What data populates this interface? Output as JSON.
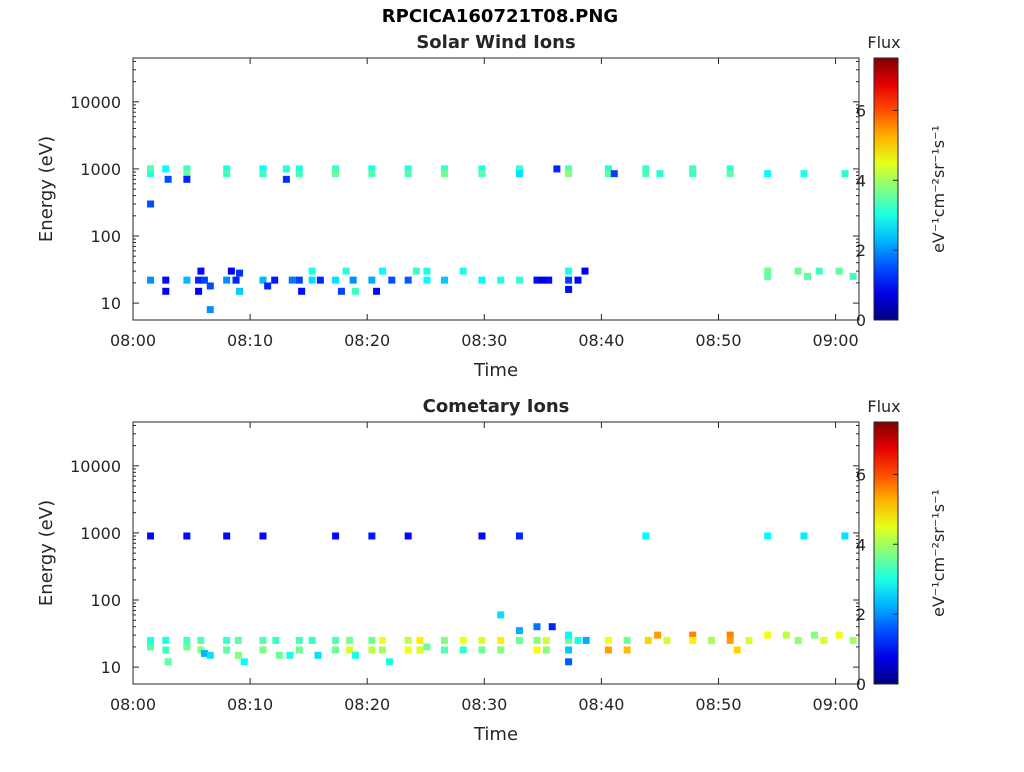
{
  "figure": {
    "title": "RPCICA160721T08.PNG"
  },
  "colorbar": {
    "label": "Flux",
    "unit_html": "eV⁻¹cm⁻²sr⁻¹s⁻¹",
    "min": 0,
    "max": 7.5,
    "ticks": [
      "0",
      "2",
      "4",
      "6"
    ],
    "colormap": "jet"
  },
  "axes_common": {
    "xlabel": "Time",
    "ylabel": "Energy (eV)",
    "x_ticks": [
      "08:00",
      "08:10",
      "08:20",
      "08:30",
      "08:40",
      "08:50",
      "09:00"
    ],
    "y_ticks": [
      "10",
      "100",
      "1000",
      "10000"
    ],
    "y_scale": "log",
    "x_range_minutes": [
      0,
      62
    ],
    "y_range": [
      5.6,
      45000
    ]
  },
  "chart_data": [
    {
      "type": "heatmap",
      "title": "Solar Wind Ions",
      "xlabel": "Time",
      "ylabel": "Energy (eV)",
      "cells": [
        [
          1.5,
          850,
          3.0
        ],
        [
          1.5,
          1000,
          3.4
        ],
        [
          1.5,
          22,
          2.0
        ],
        [
          1.5,
          300,
          1.5
        ],
        [
          2.8,
          22,
          1.0
        ],
        [
          2.8,
          15,
          0.9
        ],
        [
          2.8,
          1000,
          2.8
        ],
        [
          3.0,
          700,
          1.5
        ],
        [
          4.6,
          1000,
          3.2
        ],
        [
          4.6,
          850,
          3.6
        ],
        [
          4.6,
          22,
          2.3
        ],
        [
          4.6,
          700,
          1.2
        ],
        [
          5.6,
          22,
          1.2
        ],
        [
          5.6,
          15,
          0.9
        ],
        [
          5.8,
          30,
          1.0
        ],
        [
          6.1,
          22,
          1.4
        ],
        [
          6.6,
          18,
          1.5
        ],
        [
          6.6,
          8,
          2.0
        ],
        [
          8.0,
          1000,
          3.0
        ],
        [
          8.0,
          850,
          3.3
        ],
        [
          8.0,
          22,
          2.0
        ],
        [
          8.4,
          30,
          0.9
        ],
        [
          8.8,
          22,
          1.2
        ],
        [
          9.1,
          28,
          1.3
        ],
        [
          9.1,
          15,
          2.4
        ],
        [
          11.1,
          1000,
          2.8
        ],
        [
          11.1,
          850,
          3.2
        ],
        [
          11.1,
          22,
          2.3
        ],
        [
          11.5,
          18,
          1.2
        ],
        [
          12.1,
          22,
          1.1
        ],
        [
          13.1,
          1000,
          3.1
        ],
        [
          13.1,
          700,
          1.3
        ],
        [
          13.6,
          22,
          1.8
        ],
        [
          14.2,
          1000,
          3.0
        ],
        [
          14.2,
          850,
          3.3
        ],
        [
          14.2,
          22,
          1.4
        ],
        [
          14.4,
          15,
          1.0
        ],
        [
          15.3,
          22,
          2.6
        ],
        [
          15.3,
          30,
          3.0
        ],
        [
          16.0,
          22,
          1.2
        ],
        [
          17.3,
          1000,
          3.2
        ],
        [
          17.3,
          850,
          3.5
        ],
        [
          17.3,
          22,
          2.6
        ],
        [
          17.8,
          15,
          1.4
        ],
        [
          18.2,
          30,
          3.1
        ],
        [
          18.8,
          22,
          2.0
        ],
        [
          19.0,
          15,
          3.3
        ],
        [
          20.4,
          1000,
          3.0
        ],
        [
          20.4,
          850,
          3.4
        ],
        [
          20.4,
          22,
          2.2
        ],
        [
          20.8,
          15,
          1.0
        ],
        [
          21.3,
          30,
          2.8
        ],
        [
          22.1,
          22,
          1.5
        ],
        [
          23.5,
          1000,
          3.0
        ],
        [
          23.5,
          850,
          3.4
        ],
        [
          23.5,
          22,
          1.6
        ],
        [
          24.2,
          30,
          3.2
        ],
        [
          25.1,
          22,
          2.8
        ],
        [
          25.1,
          30,
          3.0
        ],
        [
          26.6,
          1000,
          3.2
        ],
        [
          26.6,
          850,
          3.6
        ],
        [
          26.6,
          22,
          2.4
        ],
        [
          28.2,
          30,
          3.0
        ],
        [
          29.8,
          1000,
          3.0
        ],
        [
          29.8,
          850,
          3.4
        ],
        [
          29.8,
          22,
          2.8
        ],
        [
          31.4,
          22,
          3.0
        ],
        [
          33.0,
          1000,
          3.2
        ],
        [
          33.0,
          850,
          2.6
        ],
        [
          33.0,
          22,
          3.2
        ],
        [
          34.5,
          22,
          1.0
        ],
        [
          35.0,
          22,
          0.7
        ],
        [
          35.5,
          22,
          1.0
        ],
        [
          36.2,
          1000,
          1.2
        ],
        [
          37.2,
          1000,
          3.4
        ],
        [
          37.2,
          850,
          3.8
        ],
        [
          37.2,
          30,
          3.0
        ],
        [
          37.2,
          22,
          1.4
        ],
        [
          37.2,
          16,
          1.0
        ],
        [
          38.0,
          22,
          1.0
        ],
        [
          38.6,
          30,
          0.9
        ],
        [
          40.6,
          1000,
          3.0
        ],
        [
          40.6,
          850,
          3.5
        ],
        [
          41.1,
          850,
          1.4
        ],
        [
          43.8,
          1000,
          3.2
        ],
        [
          43.8,
          850,
          3.4
        ],
        [
          45.0,
          850,
          3.1
        ],
        [
          47.8,
          1000,
          3.2
        ],
        [
          47.8,
          850,
          3.3
        ],
        [
          51.0,
          1000,
          3.1
        ],
        [
          51.0,
          850,
          3.5
        ],
        [
          54.2,
          850,
          2.8
        ],
        [
          54.2,
          30,
          3.6
        ],
        [
          54.2,
          25,
          3.5
        ],
        [
          57.3,
          850,
          3.0
        ],
        [
          56.8,
          30,
          3.6
        ],
        [
          57.6,
          25,
          3.5
        ],
        [
          58.6,
          30,
          3.3
        ],
        [
          60.8,
          850,
          3.1
        ],
        [
          60.3,
          30,
          3.5
        ],
        [
          61.5,
          25,
          3.3
        ]
      ]
    },
    {
      "type": "heatmap",
      "title": "Cometary Ions",
      "xlabel": "Time",
      "ylabel": "Energy (eV)",
      "cells": [
        [
          1.5,
          25,
          3.0
        ],
        [
          1.5,
          20,
          3.4
        ],
        [
          1.5,
          900,
          1.0
        ],
        [
          2.8,
          25,
          3.0
        ],
        [
          2.8,
          18,
          3.3
        ],
        [
          3.0,
          12,
          3.5
        ],
        [
          4.6,
          25,
          3.3
        ],
        [
          4.6,
          20,
          3.6
        ],
        [
          4.6,
          900,
          1.0
        ],
        [
          5.8,
          25,
          3.4
        ],
        [
          5.8,
          18,
          3.8
        ],
        [
          6.1,
          16,
          2.3
        ],
        [
          6.6,
          15,
          2.6
        ],
        [
          8.0,
          25,
          3.2
        ],
        [
          8.0,
          18,
          3.5
        ],
        [
          8.0,
          900,
          1.0
        ],
        [
          9.0,
          25,
          3.5
        ],
        [
          9.0,
          15,
          3.8
        ],
        [
          9.5,
          12,
          2.8
        ],
        [
          11.1,
          25,
          3.4
        ],
        [
          11.1,
          18,
          3.7
        ],
        [
          11.1,
          900,
          1.0
        ],
        [
          12.2,
          25,
          3.2
        ],
        [
          12.5,
          15,
          3.6
        ],
        [
          13.4,
          15,
          3.0
        ],
        [
          14.2,
          25,
          3.3
        ],
        [
          14.2,
          18,
          3.6
        ],
        [
          15.3,
          25,
          3.2
        ],
        [
          15.8,
          15,
          2.6
        ],
        [
          17.3,
          25,
          3.4
        ],
        [
          17.3,
          18,
          3.6
        ],
        [
          17.3,
          900,
          1.0
        ],
        [
          18.5,
          25,
          3.7
        ],
        [
          18.5,
          18,
          4.4
        ],
        [
          19.0,
          15,
          3.0
        ],
        [
          20.4,
          25,
          3.6
        ],
        [
          20.4,
          18,
          4.2
        ],
        [
          20.4,
          900,
          1.1
        ],
        [
          21.3,
          25,
          4.6
        ],
        [
          21.3,
          18,
          4.0
        ],
        [
          21.9,
          12,
          3.0
        ],
        [
          23.5,
          25,
          4.2
        ],
        [
          23.5,
          18,
          4.6
        ],
        [
          23.5,
          900,
          1.0
        ],
        [
          24.5,
          25,
          4.8
        ],
        [
          24.5,
          18,
          4.4
        ],
        [
          25.1,
          20,
          3.6
        ],
        [
          26.6,
          25,
          3.8
        ],
        [
          26.6,
          18,
          3.4
        ],
        [
          28.2,
          25,
          4.6
        ],
        [
          28.2,
          18,
          3.2
        ],
        [
          29.8,
          25,
          4.4
        ],
        [
          29.8,
          18,
          3.6
        ],
        [
          29.8,
          900,
          1.0
        ],
        [
          31.4,
          25,
          4.8
        ],
        [
          31.4,
          18,
          3.8
        ],
        [
          31.4,
          60,
          2.6
        ],
        [
          33.0,
          25,
          3.6
        ],
        [
          33.0,
          35,
          2.2
        ],
        [
          33.0,
          900,
          1.2
        ],
        [
          34.5,
          25,
          3.8
        ],
        [
          34.5,
          18,
          4.6
        ],
        [
          34.5,
          40,
          1.8
        ],
        [
          35.3,
          25,
          4.4
        ],
        [
          35.3,
          18,
          3.8
        ],
        [
          35.8,
          40,
          1.2
        ],
        [
          37.2,
          25,
          3.6
        ],
        [
          37.2,
          30,
          2.8
        ],
        [
          37.2,
          18,
          2.4
        ],
        [
          37.2,
          12,
          1.6
        ],
        [
          38.0,
          25,
          3.0
        ],
        [
          38.7,
          25,
          2.2
        ],
        [
          40.6,
          25,
          4.6
        ],
        [
          40.6,
          18,
          5.4
        ],
        [
          42.2,
          25,
          3.6
        ],
        [
          42.2,
          18,
          5.2
        ],
        [
          43.8,
          900,
          2.8
        ],
        [
          44.0,
          25,
          5.0
        ],
        [
          44.8,
          30,
          5.4
        ],
        [
          45.6,
          25,
          4.4
        ],
        [
          47.8,
          30,
          5.6
        ],
        [
          47.8,
          25,
          4.8
        ],
        [
          49.4,
          25,
          4.0
        ],
        [
          51.0,
          30,
          5.6
        ],
        [
          51.0,
          25,
          5.4
        ],
        [
          51.6,
          18,
          5.0
        ],
        [
          52.6,
          25,
          4.4
        ],
        [
          54.2,
          30,
          4.6
        ],
        [
          54.2,
          900,
          2.8
        ],
        [
          55.8,
          30,
          4.2
        ],
        [
          56.8,
          25,
          3.9
        ],
        [
          57.3,
          900,
          2.7
        ],
        [
          58.2,
          30,
          3.8
        ],
        [
          59.0,
          25,
          4.4
        ],
        [
          60.3,
          30,
          4.6
        ],
        [
          60.8,
          900,
          2.6
        ],
        [
          61.5,
          25,
          4.0
        ]
      ]
    }
  ]
}
